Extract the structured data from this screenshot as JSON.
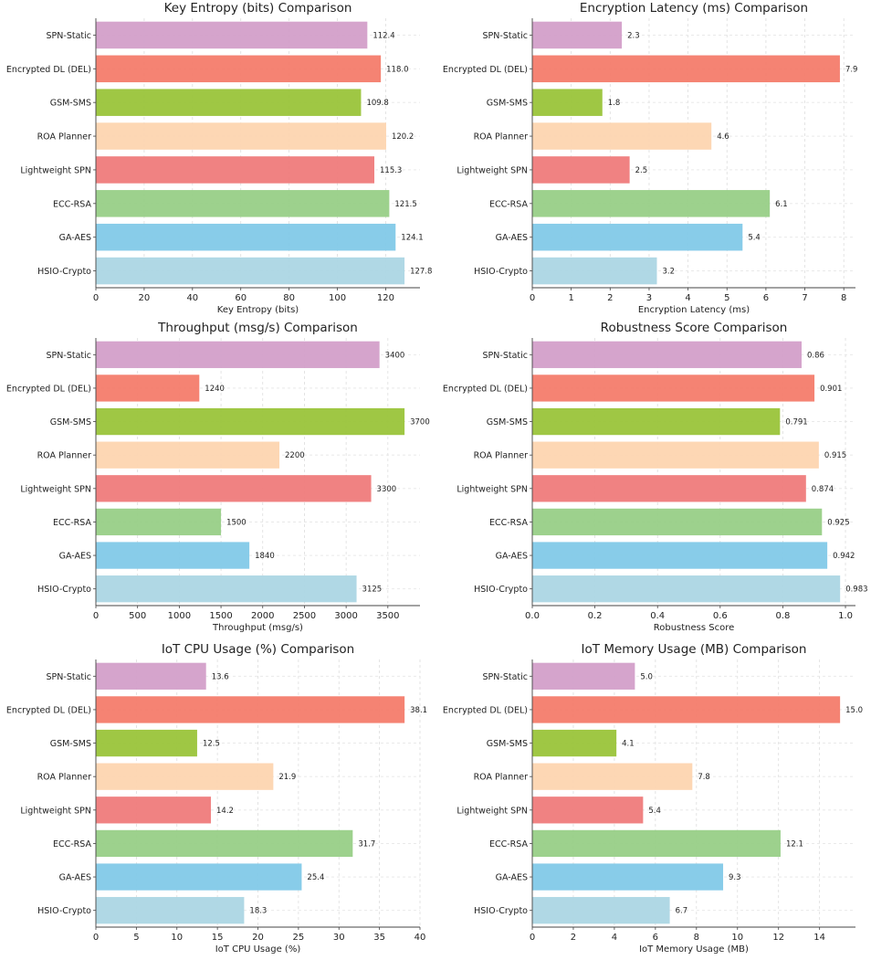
{
  "chart_data": [
    {
      "type": "bar",
      "orientation": "horizontal",
      "title": "Key Entropy (bits) Comparison",
      "xlabel": "Key Entropy (bits)",
      "ylabel": "",
      "categories": [
        "SPN-Static",
        "Encrypted DL (DEL)",
        "GSM-SMS",
        "ROA Planner",
        "Lightweight SPN",
        "ECC-RSA",
        "GA-AES",
        "HSIO-Crypto"
      ],
      "values": [
        112.4,
        118.0,
        109.8,
        120.2,
        115.3,
        121.5,
        124.1,
        127.8
      ],
      "value_labels": [
        "112.4",
        "118.0",
        "109.8",
        "120.2",
        "115.3",
        "121.5",
        "124.1",
        "127.8"
      ],
      "xticks": [
        0,
        20,
        40,
        60,
        80,
        100,
        120
      ],
      "xlim": [
        0,
        134.2
      ],
      "grid": true
    },
    {
      "type": "bar",
      "orientation": "horizontal",
      "title": "Encryption Latency (ms) Comparison",
      "xlabel": "Encryption Latency (ms)",
      "ylabel": "",
      "categories": [
        "SPN-Static",
        "Encrypted DL (DEL)",
        "GSM-SMS",
        "ROA Planner",
        "Lightweight SPN",
        "ECC-RSA",
        "GA-AES",
        "HSIO-Crypto"
      ],
      "values": [
        2.3,
        7.9,
        1.8,
        4.6,
        2.5,
        6.1,
        5.4,
        3.2
      ],
      "value_labels": [
        "2.3",
        "7.9",
        "1.8",
        "4.6",
        "2.5",
        "6.1",
        "5.4",
        "3.2"
      ],
      "xticks": [
        0,
        1,
        2,
        3,
        4,
        5,
        6,
        7,
        8
      ],
      "xlim": [
        0,
        8.3
      ],
      "grid": true
    },
    {
      "type": "bar",
      "orientation": "horizontal",
      "title": "Throughput (msg/s) Comparison",
      "xlabel": "Throughput (msg/s)",
      "ylabel": "",
      "categories": [
        "SPN-Static",
        "Encrypted DL (DEL)",
        "GSM-SMS",
        "ROA Planner",
        "Lightweight SPN",
        "ECC-RSA",
        "GA-AES",
        "HSIO-Crypto"
      ],
      "values": [
        3400,
        1240,
        3700,
        2200,
        3300,
        1500,
        1840,
        3125
      ],
      "value_labels": [
        "3400",
        "1240",
        "3700",
        "2200",
        "3300",
        "1500",
        "1840",
        "3125"
      ],
      "xticks": [
        0,
        500,
        1000,
        1500,
        2000,
        2500,
        3000,
        3500
      ],
      "xlim": [
        0,
        3885
      ],
      "grid": true
    },
    {
      "type": "bar",
      "orientation": "horizontal",
      "title": "Robustness Score Comparison",
      "xlabel": "Robustness Score",
      "ylabel": "",
      "categories": [
        "SPN-Static",
        "Encrypted DL (DEL)",
        "GSM-SMS",
        "ROA Planner",
        "Lightweight SPN",
        "ECC-RSA",
        "GA-AES",
        "HSIO-Crypto"
      ],
      "values": [
        0.86,
        0.901,
        0.791,
        0.915,
        0.874,
        0.925,
        0.942,
        0.983
      ],
      "value_labels": [
        "0.86",
        "0.901",
        "0.791",
        "0.915",
        "0.874",
        "0.925",
        "0.942",
        "0.983"
      ],
      "xticks": [
        0.0,
        0.2,
        0.4,
        0.6,
        0.8,
        1.0
      ],
      "xtick_labels": [
        "0.0",
        "0.2",
        "0.4",
        "0.6",
        "0.8",
        "1.0"
      ],
      "xlim": [
        0,
        1.032
      ],
      "grid": true
    },
    {
      "type": "bar",
      "orientation": "horizontal",
      "title": "IoT CPU Usage (%) Comparison",
      "xlabel": "IoT CPU Usage (%)",
      "ylabel": "",
      "categories": [
        "SPN-Static",
        "Encrypted DL (DEL)",
        "GSM-SMS",
        "ROA Planner",
        "Lightweight SPN",
        "ECC-RSA",
        "GA-AES",
        "HSIO-Crypto"
      ],
      "values": [
        13.6,
        38.1,
        12.5,
        21.9,
        14.2,
        31.7,
        25.4,
        18.3
      ],
      "value_labels": [
        "13.6",
        "38.1",
        "12.5",
        "21.9",
        "14.2",
        "31.7",
        "25.4",
        "18.3"
      ],
      "xticks": [
        0,
        5,
        10,
        15,
        20,
        25,
        30,
        35,
        40
      ],
      "xlim": [
        0,
        40.0
      ],
      "grid": true
    },
    {
      "type": "bar",
      "orientation": "horizontal",
      "title": "IoT Memory Usage (MB) Comparison",
      "xlabel": "IoT Memory Usage (MB)",
      "ylabel": "",
      "categories": [
        "SPN-Static",
        "Encrypted DL (DEL)",
        "GSM-SMS",
        "ROA Planner",
        "Lightweight SPN",
        "ECC-RSA",
        "GA-AES",
        "HSIO-Crypto"
      ],
      "values": [
        5.0,
        15.0,
        4.1,
        7.8,
        5.4,
        12.1,
        9.3,
        6.7
      ],
      "value_labels": [
        "5.0",
        "15.0",
        "4.1",
        "7.8",
        "5.4",
        "12.1",
        "9.3",
        "6.7"
      ],
      "xticks": [
        0,
        2,
        4,
        6,
        8,
        10,
        12,
        14
      ],
      "xlim": [
        0,
        15.75
      ],
      "grid": true
    }
  ],
  "colors": [
    "#d39fc9",
    "#f47c6c",
    "#9ac43a",
    "#fdd5b0",
    "#ef7b7b",
    "#98cf87",
    "#82c9e8",
    "#acd6e4"
  ]
}
